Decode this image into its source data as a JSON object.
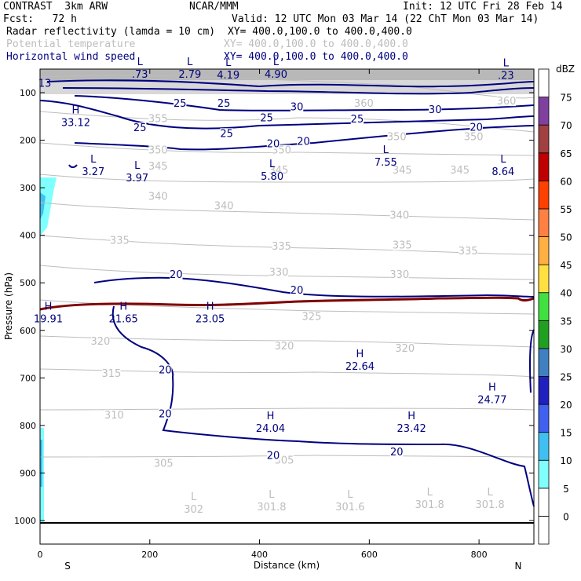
{
  "header": {
    "model": "CONTRAST  3km ARW",
    "org": "NCAR/MMM",
    "init": "Init: 12 UTC Fri 28 Feb 14",
    "fcst": "Fcst:   72 h",
    "valid": "Valid: 12 UTC Mon 03 Mar 14 (22 ChT Mon 03 Mar 14)",
    "fields": [
      {
        "name": "Radar reflectivity (lamda = 10 cm)",
        "xy": "XY= 400.0,100.0 to 400.0,400.0"
      },
      {
        "name": "Potential temperature",
        "xy": "XY= 400.0,100.0 to 400.0,400.0"
      },
      {
        "name": "Horizontal wind speed",
        "xy": "XY= 400.0,100.0 to 400.0,400.0"
      }
    ]
  },
  "chart_data": {
    "type": "cross-section contour",
    "xlabel": "Distance (km)",
    "ylabel": "Pressure (hPa)",
    "x_ticks": [
      0,
      200,
      400,
      600,
      800
    ],
    "xlim": [
      0,
      900
    ],
    "y_ticks": [
      100,
      200,
      300,
      400,
      500,
      600,
      700,
      800,
      900,
      1000
    ],
    "ylim": [
      50,
      1050
    ],
    "left_end_label": "S",
    "right_end_label": "N",
    "colorbar": {
      "unit": "dBZ",
      "levels": [
        0,
        5,
        10,
        15,
        20,
        25,
        30,
        35,
        40,
        45,
        50,
        55,
        60,
        65,
        70,
        75
      ],
      "colors": [
        "#ffffff",
        "#80ffff",
        "#40c0f0",
        "#4060f0",
        "#2020c0",
        "#4080c0",
        "#20a020",
        "#40e040",
        "#ffe040",
        "#ffb040",
        "#ff8040",
        "#ff4000",
        "#c00000",
        "#a04040",
        "#8040a0",
        "#c080c0"
      ]
    },
    "theta_labels": [
      {
        "text": "360",
        "x": 590,
        "p": 130
      },
      {
        "text": "360",
        "x": 850,
        "p": 125
      },
      {
        "text": "355",
        "x": 215,
        "p": 162
      },
      {
        "text": "350",
        "x": 215,
        "p": 228
      },
      {
        "text": "350",
        "x": 440,
        "p": 228
      },
      {
        "text": "350",
        "x": 650,
        "p": 200
      },
      {
        "text": "350",
        "x": 790,
        "p": 200
      },
      {
        "text": "345",
        "x": 215,
        "p": 262
      },
      {
        "text": "345",
        "x": 435,
        "p": 270
      },
      {
        "text": "345",
        "x": 660,
        "p": 270
      },
      {
        "text": "345",
        "x": 765,
        "p": 270
      },
      {
        "text": "340",
        "x": 215,
        "p": 325
      },
      {
        "text": "340",
        "x": 335,
        "p": 345
      },
      {
        "text": "340",
        "x": 655,
        "p": 365
      },
      {
        "text": "335",
        "x": 145,
        "p": 418
      },
      {
        "text": "335",
        "x": 440,
        "p": 430
      },
      {
        "text": "335",
        "x": 660,
        "p": 428
      },
      {
        "text": "335",
        "x": 780,
        "p": 440
      },
      {
        "text": "330",
        "x": 435,
        "p": 485
      },
      {
        "text": "330",
        "x": 655,
        "p": 490
      },
      {
        "text": "325",
        "x": 495,
        "p": 578
      },
      {
        "text": "320",
        "x": 110,
        "p": 630
      },
      {
        "text": "320",
        "x": 445,
        "p": 640
      },
      {
        "text": "320",
        "x": 665,
        "p": 645
      },
      {
        "text": "315",
        "x": 130,
        "p": 698
      },
      {
        "text": "310",
        "x": 135,
        "p": 785
      },
      {
        "text": "305",
        "x": 225,
        "p": 887
      },
      {
        "text": "305",
        "x": 445,
        "p": 880
      }
    ],
    "theta_extremes": [
      {
        "kind": "L",
        "value": "302",
        "x": 280,
        "p": 980
      },
      {
        "kind": "L",
        "value": "301.8",
        "x": 422,
        "p": 975
      },
      {
        "kind": "L",
        "value": "301.6",
        "x": 565,
        "p": 975
      },
      {
        "kind": "L",
        "value": "301.8",
        "x": 710,
        "p": 970
      },
      {
        "kind": "L",
        "value": "301.8",
        "x": 820,
        "p": 970
      }
    ],
    "wind_labels": [
      {
        "text": "25",
        "x": 255,
        "p": 130
      },
      {
        "text": "25",
        "x": 335,
        "p": 130
      },
      {
        "text": "30",
        "x": 468,
        "p": 137
      },
      {
        "text": "25",
        "x": 413,
        "p": 160
      },
      {
        "text": "25",
        "x": 578,
        "p": 163
      },
      {
        "text": "30",
        "x": 720,
        "p": 143
      },
      {
        "text": "20",
        "x": 795,
        "p": 180
      },
      {
        "text": "25",
        "x": 182,
        "p": 181
      },
      {
        "text": "25",
        "x": 340,
        "p": 193
      },
      {
        "text": "20",
        "x": 425,
        "p": 215
      },
      {
        "text": "20",
        "x": 480,
        "p": 210
      },
      {
        "text": "20",
        "x": 248,
        "p": 490
      },
      {
        "text": "20",
        "x": 468,
        "p": 523
      },
      {
        "text": "20",
        "x": 228,
        "p": 690
      },
      {
        "text": "20",
        "x": 228,
        "p": 783
      },
      {
        "text": "20",
        "x": 425,
        "p": 870
      },
      {
        "text": "20",
        "x": 650,
        "p": 863
      }
    ],
    "wind_extremes": [
      {
        "kind": "L",
        "value": ".73",
        "x": 182,
        "p": 65
      },
      {
        "kind": "L",
        "value": "2.79",
        "x": 273,
        "p": 65
      },
      {
        "kind": "L",
        "value": "4.19",
        "x": 343,
        "p": 67
      },
      {
        "kind": "L",
        "value": "4.90",
        "x": 430,
        "p": 65
      },
      {
        "kind": "L",
        "value": ".23",
        "x": 849,
        "p": 68
      },
      {
        "kind": "H",
        "value": "33.12",
        "x": 65,
        "p": 167
      },
      {
        "kind": "L",
        "value": "3.27",
        "x": 97,
        "p": 270
      },
      {
        "kind": "L",
        "value": "3.97",
        "x": 177,
        "p": 283
      },
      {
        "kind": "L",
        "value": "5.80",
        "x": 423,
        "p": 280
      },
      {
        "kind": "L",
        "value": "7.55",
        "x": 630,
        "p": 250
      },
      {
        "kind": "L",
        "value": "8.64",
        "x": 844,
        "p": 270
      },
      {
        "kind": "H",
        "value": "19.91",
        "x": 15,
        "p": 580
      },
      {
        "kind": "H",
        "value": "21.65",
        "x": 152,
        "p": 580
      },
      {
        "kind": "H",
        "value": "23.05",
        "x": 310,
        "p": 580
      },
      {
        "kind": "H",
        "value": "22.64",
        "x": 583,
        "p": 680
      },
      {
        "kind": "H",
        "value": "24.77",
        "x": 824,
        "p": 750
      },
      {
        "kind": "H",
        "value": "24.04",
        "x": 420,
        "p": 810
      },
      {
        "kind": "H",
        "value": "23.42",
        "x": 677,
        "p": 810
      }
    ],
    "partial_top_labels": [
      {
        "text": "13",
        "x": 10,
        "p": 88
      }
    ]
  }
}
